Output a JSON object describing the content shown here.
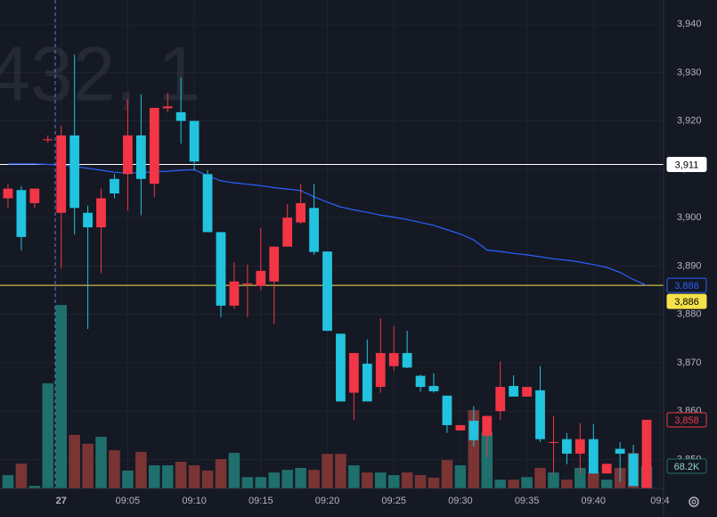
{
  "chart_data": {
    "type": "candlestick",
    "watermark": "432, 1",
    "ylim": [
      3844,
      3945
    ],
    "yticks": [
      {
        "value": 3850,
        "label": "3,850"
      },
      {
        "value": 3860,
        "label": "3,860"
      },
      {
        "value": 3870,
        "label": "3,870"
      },
      {
        "value": 3880,
        "label": "3,880"
      },
      {
        "value": 3890,
        "label": "3,890"
      },
      {
        "value": 3900,
        "label": "3,900"
      },
      {
        "value": 3910,
        "label": "3,910"
      },
      {
        "value": 3920,
        "label": "3,920"
      },
      {
        "value": 3930,
        "label": "3,930"
      },
      {
        "value": 3940,
        "label": "3,940"
      }
    ],
    "xlim": [
      -0.6,
      49.27
    ],
    "xticks": [
      {
        "value": 4,
        "label": "27"
      },
      {
        "value": 9,
        "label": "09:05"
      },
      {
        "value": 14,
        "label": "09:10"
      },
      {
        "value": 19,
        "label": "09:15"
      },
      {
        "value": 24,
        "label": "09:20"
      },
      {
        "value": 29,
        "label": "09:25"
      },
      {
        "value": 34,
        "label": "09:30"
      },
      {
        "value": 39,
        "label": "09:35"
      },
      {
        "value": 44,
        "label": "09:40"
      },
      {
        "value": 49,
        "label": "09:4"
      }
    ],
    "grid": true,
    "up_color": "#f23645",
    "down_color": "#22c3df",
    "volume_up_color": "#1f6f6c",
    "volume_down_color": "#7a3434",
    "vlim": [
      0,
      1496
    ],
    "candles": [
      {
        "o": 3904,
        "h": 3907,
        "l": 3902,
        "c": 3906
      },
      {
        "o": 3905.7,
        "h": 3906.5,
        "l": 3893.2,
        "c": 3896
      },
      {
        "o": 3903,
        "h": 3906,
        "l": 3902,
        "c": 3906
      },
      {
        "o": 3916,
        "h": 3917,
        "l": 3915.5,
        "c": 3916.2
      },
      {
        "o": 3901,
        "h": 3919,
        "l": 3889.5,
        "c": 3917
      },
      {
        "o": 3917,
        "h": 3933.7,
        "l": 3896.5,
        "c": 3902
      },
      {
        "o": 3901,
        "h": 3902.5,
        "l": 3877,
        "c": 3898
      },
      {
        "o": 3898,
        "h": 3906,
        "l": 3888.5,
        "c": 3904
      },
      {
        "o": 3908,
        "h": 3909,
        "l": 3904,
        "c": 3905
      },
      {
        "o": 3909,
        "h": 3924.5,
        "l": 3901.5,
        "c": 3917
      },
      {
        "o": 3917,
        "h": 3925.5,
        "l": 3900.5,
        "c": 3908
      },
      {
        "o": 3907,
        "h": 3922.7,
        "l": 3904.3,
        "c": 3922.7
      },
      {
        "o": 3922.6,
        "h": 3925.8,
        "l": 3921.8,
        "c": 3923
      },
      {
        "o": 3921.8,
        "h": 3929,
        "l": 3915.3,
        "c": 3920
      },
      {
        "o": 3920,
        "h": 3920,
        "l": 3909.8,
        "c": 3911.6
      },
      {
        "o": 3909,
        "h": 3909.8,
        "l": 3897,
        "c": 3897
      },
      {
        "o": 3897,
        "h": 3897,
        "l": 3879.4,
        "c": 3881.8
      },
      {
        "o": 3881.8,
        "h": 3890.8,
        "l": 3881.2,
        "c": 3886.8
      },
      {
        "o": 3886.2,
        "h": 3890.3,
        "l": 3879.4,
        "c": 3886.4
      },
      {
        "o": 3885.9,
        "h": 3897.8,
        "l": 3885,
        "c": 3889
      },
      {
        "o": 3886.8,
        "h": 3894,
        "l": 3878,
        "c": 3894
      },
      {
        "o": 3894,
        "h": 3902.8,
        "l": 3894,
        "c": 3900
      },
      {
        "o": 3899,
        "h": 3907,
        "l": 3898.7,
        "c": 3903
      },
      {
        "o": 3902,
        "h": 3907,
        "l": 3892.3,
        "c": 3892.9
      },
      {
        "o": 3893,
        "h": 3893,
        "l": 3876.6,
        "c": 3876.6
      },
      {
        "o": 3876,
        "h": 3876,
        "l": 3862,
        "c": 3862
      },
      {
        "o": 3863.8,
        "h": 3872,
        "l": 3858.2,
        "c": 3872
      },
      {
        "o": 3869.8,
        "h": 3874.8,
        "l": 3862,
        "c": 3862
      },
      {
        "o": 3865,
        "h": 3879.2,
        "l": 3863.8,
        "c": 3872
      },
      {
        "o": 3869.3,
        "h": 3877.6,
        "l": 3868.3,
        "c": 3872
      },
      {
        "o": 3872,
        "h": 3876.6,
        "l": 3868.9,
        "c": 3869
      },
      {
        "o": 3867.3,
        "h": 3867.5,
        "l": 3864,
        "c": 3865
      },
      {
        "o": 3865.2,
        "h": 3867.8,
        "l": 3863.8,
        "c": 3864.1
      },
      {
        "o": 3863.2,
        "h": 3863.2,
        "l": 3855.5,
        "c": 3857.1
      },
      {
        "o": 3856,
        "h": 3857.1,
        "l": 3856,
        "c": 3857.1
      },
      {
        "o": 3858,
        "h": 3861,
        "l": 3852.7,
        "c": 3854
      },
      {
        "o": 3854.9,
        "h": 3859,
        "l": 3850.4,
        "c": 3859
      },
      {
        "o": 3860,
        "h": 3870.2,
        "l": 3858.2,
        "c": 3865
      },
      {
        "o": 3865.2,
        "h": 3867.4,
        "l": 3863,
        "c": 3863
      },
      {
        "o": 3863,
        "h": 3865,
        "l": 3863,
        "c": 3865
      },
      {
        "o": 3864.3,
        "h": 3869.3,
        "l": 3853.6,
        "c": 3854.2
      },
      {
        "o": 3853.4,
        "h": 3859,
        "l": 3847,
        "c": 3853.6
      },
      {
        "o": 3854.2,
        "h": 3855.5,
        "l": 3849,
        "c": 3851.2
      },
      {
        "o": 3851.2,
        "h": 3857.5,
        "l": 3847,
        "c": 3854.2
      },
      {
        "o": 3854.2,
        "h": 3857.3,
        "l": 3847,
        "c": 3847.1
      },
      {
        "o": 3847.1,
        "h": 3849.1,
        "l": 3847.1,
        "c": 3849.1
      },
      {
        "o": 3852.2,
        "h": 3853.6,
        "l": 3845.3,
        "c": 3851.2
      },
      {
        "o": 3851.2,
        "h": 3853,
        "l": 3844.5,
        "c": 3844.5
      },
      {
        "o": 3844,
        "h": 3858.2,
        "l": 3844,
        "c": 3858.2
      }
    ],
    "volumes": [
      41,
      76,
      8,
      322,
      562,
      164,
      137,
      158,
      117,
      55,
      112,
      71,
      71,
      82,
      71,
      55,
      90,
      109,
      35,
      35,
      49,
      57,
      63,
      57,
      106,
      106,
      71,
      49,
      49,
      41,
      49,
      41,
      33,
      87,
      71,
      240,
      172,
      27,
      27,
      35,
      63,
      49,
      27,
      63,
      49,
      27,
      63,
      109,
      68.2
    ],
    "volume_label": {
      "value": 68.2,
      "label": "68.2K",
      "color": "#1f6f6c"
    },
    "ma": {
      "color": "#2962ff",
      "values": [
        3911.1,
        3911.1,
        3911.1,
        3911.0,
        3910.9,
        3910.6,
        3910.2,
        3909.8,
        3909.4,
        3909.2,
        3909.3,
        3909.5,
        3909.6,
        3909.8,
        3909.9,
        3908.7,
        3907.6,
        3907.2,
        3906.9,
        3906.6,
        3906.2,
        3905.9,
        3905.6,
        3904.3,
        3903.2,
        3902.2,
        3901.6,
        3901.1,
        3900.5,
        3900.1,
        3899.6,
        3899.0,
        3898.4,
        3897.5,
        3896.6,
        3895.4,
        3893.3,
        3893.0,
        3892.6,
        3892.3,
        3891.9,
        3891.5,
        3891.2,
        3890.8,
        3890.3,
        3889.7,
        3888.7,
        3887.2,
        3886.0
      ]
    },
    "hlines": [
      {
        "value": 3911,
        "color": "#ffffff"
      },
      {
        "value": 3886,
        "color": "#f5e14a"
      }
    ],
    "price_labels": [
      {
        "value": 3911,
        "label": "3,911",
        "color": "#ffffff",
        "text_color": "#000000",
        "outline": false
      },
      {
        "value": 3886,
        "label": "3,886",
        "color": "#2962ff",
        "text_color": "#2962ff",
        "outline": true
      },
      {
        "value": 3886,
        "label": "3,886",
        "color": "#f5e14a",
        "text_color": "#000000",
        "outline": false,
        "offset": 18
      },
      {
        "value": 3858.2,
        "label": "3,858",
        "color": "#f23645",
        "text_color": "#f23645",
        "outline": true
      }
    ]
  }
}
